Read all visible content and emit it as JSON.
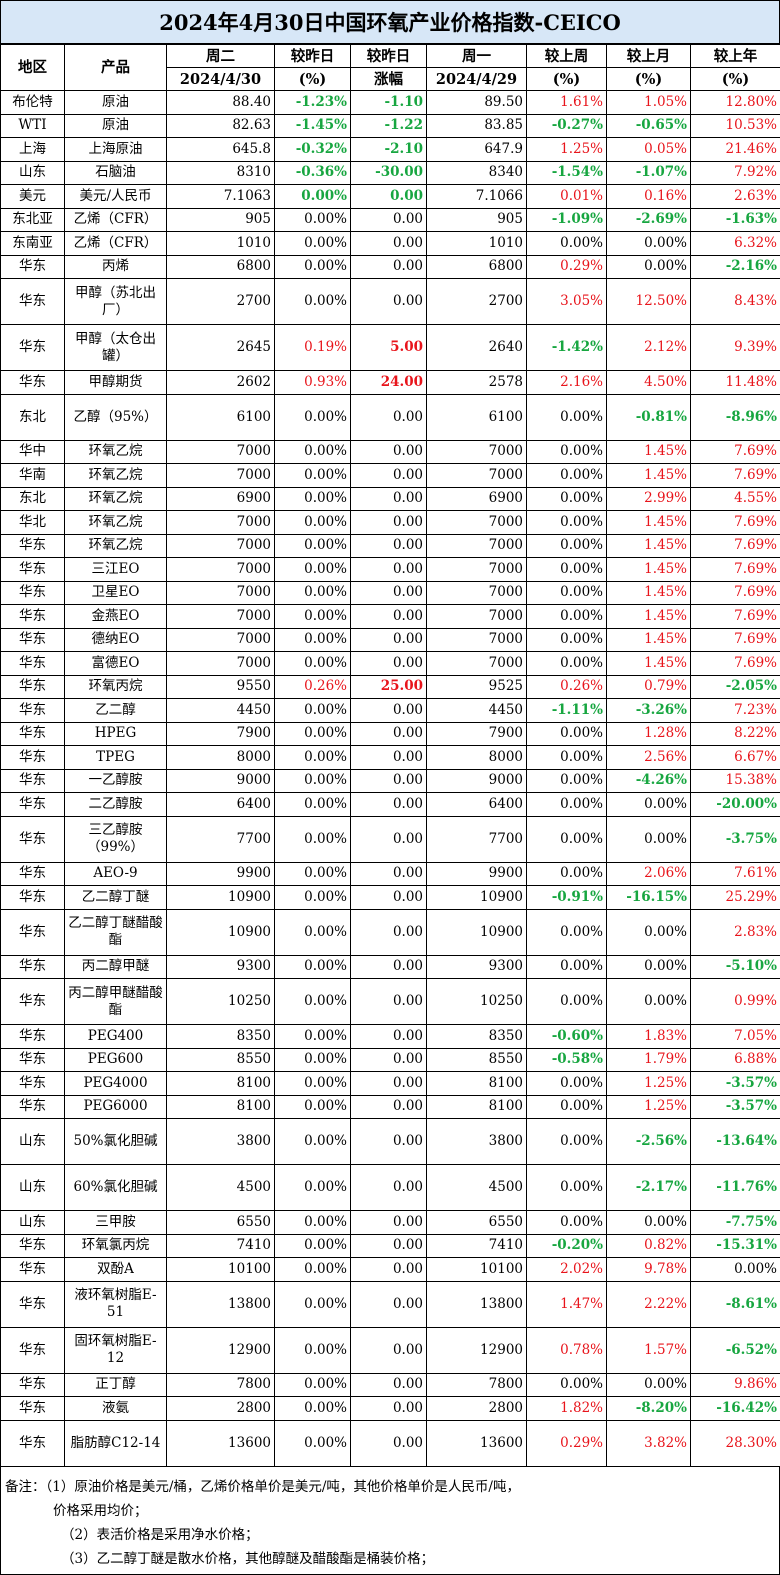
{
  "title": "2024年4月30日中国环氧产业价格指数-CEICO",
  "headers": {
    "region": "地区",
    "product": "产品",
    "today": "周二",
    "today_date": "2024/4/30",
    "vs_yest": "较昨日",
    "vs_yest_unit": "(%)",
    "vs_yest_abs": "较昨日",
    "vs_yest_abs_unit": "涨幅",
    "prev": "周一",
    "prev_date": "2024/4/29",
    "vs_week": "较上周",
    "vs_week_unit": "(%)",
    "vs_month": "较上月",
    "vs_month_unit": "(%)",
    "vs_year": "较上年",
    "vs_year_unit": "(%)"
  },
  "rows": [
    {
      "region": "布伦特",
      "product": "原油",
      "today": "88.40",
      "pct": "-1.23%",
      "abs": "-1.10",
      "prev": "89.50",
      "week": "1.61%",
      "month": "1.05%",
      "year": "12.80%"
    },
    {
      "region": "WTI",
      "product": "原油",
      "today": "82.63",
      "pct": "-1.45%",
      "abs": "-1.22",
      "prev": "83.85",
      "week": "-0.27%",
      "month": "-0.65%",
      "year": "10.53%"
    },
    {
      "region": "上海",
      "product": "上海原油",
      "today": "645.8",
      "pct": "-0.32%",
      "abs": "-2.10",
      "prev": "647.9",
      "week": "1.25%",
      "month": "0.05%",
      "year": "21.46%"
    },
    {
      "region": "山东",
      "product": "石脑油",
      "today": "8310",
      "pct": "-0.36%",
      "abs": "-30.00",
      "prev": "8340",
      "week": "-1.54%",
      "month": "-1.07%",
      "year": "7.92%"
    },
    {
      "region": "美元",
      "product": "美元/人民币",
      "today": "7.1063",
      "pct": "0.00%",
      "abs": "0.00",
      "prev": "7.1066",
      "week": "0.01%",
      "month": "0.16%",
      "year": "2.63%",
      "bold_zero": true
    },
    {
      "region": "东北亚",
      "product": "乙烯（CFR）",
      "today": "905",
      "pct": "0.00%",
      "abs": "0.00",
      "prev": "905",
      "week": "-1.09%",
      "month": "-2.69%",
      "year": "-1.63%"
    },
    {
      "region": "东南亚",
      "product": "乙烯（CFR）",
      "today": "1010",
      "pct": "0.00%",
      "abs": "0.00",
      "prev": "1010",
      "week": "0.00%",
      "month": "0.00%",
      "year": "6.32%"
    },
    {
      "region": "华东",
      "product": "丙烯",
      "today": "6800",
      "pct": "0.00%",
      "abs": "0.00",
      "prev": "6800",
      "week": "0.29%",
      "month": "0.00%",
      "year": "-2.16%"
    },
    {
      "region": "华东",
      "product": "甲醇（苏北出厂）",
      "today": "2700",
      "pct": "0.00%",
      "abs": "0.00",
      "prev": "2700",
      "week": "3.05%",
      "month": "12.50%",
      "year": "8.43%",
      "tall": true
    },
    {
      "region": "华东",
      "product": "甲醇（太仓出罐）",
      "today": "2645",
      "pct": "0.19%",
      "abs": "5.00",
      "prev": "2640",
      "week": "-1.42%",
      "month": "2.12%",
      "year": "9.39%",
      "tall": true
    },
    {
      "region": "华东",
      "product": "甲醇期货",
      "today": "2602",
      "pct": "0.93%",
      "abs": "24.00",
      "prev": "2578",
      "week": "2.16%",
      "month": "4.50%",
      "year": "11.48%"
    },
    {
      "region": "东北",
      "product": "乙醇（95%）",
      "today": "6100",
      "pct": "0.00%",
      "abs": "0.00",
      "prev": "6100",
      "week": "0.00%",
      "month": "-0.81%",
      "year": "-8.96%",
      "tall": true
    },
    {
      "region": "华中",
      "product": "环氧乙烷",
      "today": "7000",
      "pct": "0.00%",
      "abs": "0.00",
      "prev": "7000",
      "week": "0.00%",
      "month": "1.45%",
      "year": "7.69%"
    },
    {
      "region": "华南",
      "product": "环氧乙烷",
      "today": "7000",
      "pct": "0.00%",
      "abs": "0.00",
      "prev": "7000",
      "week": "0.00%",
      "month": "1.45%",
      "year": "7.69%"
    },
    {
      "region": "东北",
      "product": "环氧乙烷",
      "today": "6900",
      "pct": "0.00%",
      "abs": "0.00",
      "prev": "6900",
      "week": "0.00%",
      "month": "2.99%",
      "year": "4.55%"
    },
    {
      "region": "华北",
      "product": "环氧乙烷",
      "today": "7000",
      "pct": "0.00%",
      "abs": "0.00",
      "prev": "7000",
      "week": "0.00%",
      "month": "1.45%",
      "year": "7.69%"
    },
    {
      "region": "华东",
      "product": "环氧乙烷",
      "today": "7000",
      "pct": "0.00%",
      "abs": "0.00",
      "prev": "7000",
      "week": "0.00%",
      "month": "1.45%",
      "year": "7.69%"
    },
    {
      "region": "华东",
      "product": "三江EO",
      "today": "7000",
      "pct": "0.00%",
      "abs": "0.00",
      "prev": "7000",
      "week": "0.00%",
      "month": "1.45%",
      "year": "7.69%"
    },
    {
      "region": "华东",
      "product": "卫星EO",
      "today": "7000",
      "pct": "0.00%",
      "abs": "0.00",
      "prev": "7000",
      "week": "0.00%",
      "month": "1.45%",
      "year": "7.69%"
    },
    {
      "region": "华东",
      "product": "金燕EO",
      "today": "7000",
      "pct": "0.00%",
      "abs": "0.00",
      "prev": "7000",
      "week": "0.00%",
      "month": "1.45%",
      "year": "7.69%"
    },
    {
      "region": "华东",
      "product": "德纳EO",
      "today": "7000",
      "pct": "0.00%",
      "abs": "0.00",
      "prev": "7000",
      "week": "0.00%",
      "month": "1.45%",
      "year": "7.69%"
    },
    {
      "region": "华东",
      "product": "富德EO",
      "today": "7000",
      "pct": "0.00%",
      "abs": "0.00",
      "prev": "7000",
      "week": "0.00%",
      "month": "1.45%",
      "year": "7.69%"
    },
    {
      "region": "华东",
      "product": "环氧丙烷",
      "today": "9550",
      "pct": "0.26%",
      "abs": "25.00",
      "prev": "9525",
      "week": "0.26%",
      "month": "0.79%",
      "year": "-2.05%"
    },
    {
      "region": "华东",
      "product": "乙二醇",
      "today": "4450",
      "pct": "0.00%",
      "abs": "0.00",
      "prev": "4450",
      "week": "-1.11%",
      "month": "-3.26%",
      "year": "7.23%"
    },
    {
      "region": "华东",
      "product": "HPEG",
      "today": "7900",
      "pct": "0.00%",
      "abs": "0.00",
      "prev": "7900",
      "week": "0.00%",
      "month": "1.28%",
      "year": "8.22%"
    },
    {
      "region": "华东",
      "product": "TPEG",
      "today": "8000",
      "pct": "0.00%",
      "abs": "0.00",
      "prev": "8000",
      "week": "0.00%",
      "month": "2.56%",
      "year": "6.67%"
    },
    {
      "region": "华东",
      "product": "一乙醇胺",
      "today": "9000",
      "pct": "0.00%",
      "abs": "0.00",
      "prev": "9000",
      "week": "0.00%",
      "month": "-4.26%",
      "year": "15.38%"
    },
    {
      "region": "华东",
      "product": "二乙醇胺",
      "today": "6400",
      "pct": "0.00%",
      "abs": "0.00",
      "prev": "6400",
      "week": "0.00%",
      "month": "0.00%",
      "year": "-20.00%"
    },
    {
      "region": "华东",
      "product": "三乙醇胺（99%）",
      "today": "7700",
      "pct": "0.00%",
      "abs": "0.00",
      "prev": "7700",
      "week": "0.00%",
      "month": "0.00%",
      "year": "-3.75%",
      "tall": true
    },
    {
      "region": "华东",
      "product": "AEO-9",
      "today": "9900",
      "pct": "0.00%",
      "abs": "0.00",
      "prev": "9900",
      "week": "0.00%",
      "month": "2.06%",
      "year": "7.61%"
    },
    {
      "region": "华东",
      "product": "乙二醇丁醚",
      "today": "10900",
      "pct": "0.00%",
      "abs": "0.00",
      "prev": "10900",
      "week": "-0.91%",
      "month": "-16.15%",
      "year": "25.29%"
    },
    {
      "region": "华东",
      "product": "乙二醇丁醚醋酸酯",
      "today": "10900",
      "pct": "0.00%",
      "abs": "0.00",
      "prev": "10900",
      "week": "0.00%",
      "month": "0.00%",
      "year": "2.83%",
      "tall": true
    },
    {
      "region": "华东",
      "product": "丙二醇甲醚",
      "today": "9300",
      "pct": "0.00%",
      "abs": "0.00",
      "prev": "9300",
      "week": "0.00%",
      "month": "0.00%",
      "year": "-5.10%"
    },
    {
      "region": "华东",
      "product": "丙二醇甲醚醋酸酯",
      "today": "10250",
      "pct": "0.00%",
      "abs": "0.00",
      "prev": "10250",
      "week": "0.00%",
      "month": "0.00%",
      "year": "0.99%",
      "tall": true
    },
    {
      "region": "华东",
      "product": "PEG400",
      "today": "8350",
      "pct": "0.00%",
      "abs": "0.00",
      "prev": "8350",
      "week": "-0.60%",
      "month": "1.83%",
      "year": "7.05%"
    },
    {
      "region": "华东",
      "product": "PEG600",
      "today": "8550",
      "pct": "0.00%",
      "abs": "0.00",
      "prev": "8550",
      "week": "-0.58%",
      "month": "1.79%",
      "year": "6.88%"
    },
    {
      "region": "华东",
      "product": "PEG4000",
      "today": "8100",
      "pct": "0.00%",
      "abs": "0.00",
      "prev": "8100",
      "week": "0.00%",
      "month": "1.25%",
      "year": "-3.57%"
    },
    {
      "region": "华东",
      "product": "PEG6000",
      "today": "8100",
      "pct": "0.00%",
      "abs": "0.00",
      "prev": "8100",
      "week": "0.00%",
      "month": "1.25%",
      "year": "-3.57%"
    },
    {
      "region": "山东",
      "product": "50%氯化胆碱",
      "today": "3800",
      "pct": "0.00%",
      "abs": "0.00",
      "prev": "3800",
      "week": "0.00%",
      "month": "-2.56%",
      "year": "-13.64%",
      "tall": true
    },
    {
      "region": "山东",
      "product": "60%氯化胆碱",
      "today": "4500",
      "pct": "0.00%",
      "abs": "0.00",
      "prev": "4500",
      "week": "0.00%",
      "month": "-2.17%",
      "year": "-11.76%",
      "tall": true
    },
    {
      "region": "山东",
      "product": "三甲胺",
      "today": "6550",
      "pct": "0.00%",
      "abs": "0.00",
      "prev": "6550",
      "week": "0.00%",
      "month": "0.00%",
      "year": "-7.75%"
    },
    {
      "region": "华东",
      "product": "环氧氯丙烷",
      "today": "7410",
      "pct": "0.00%",
      "abs": "0.00",
      "prev": "7410",
      "week": "-0.20%",
      "month": "0.82%",
      "year": "-15.31%"
    },
    {
      "region": "华东",
      "product": "双酚A",
      "today": "10100",
      "pct": "0.00%",
      "abs": "0.00",
      "prev": "10100",
      "week": "2.02%",
      "month": "9.78%",
      "year": "0.00%"
    },
    {
      "region": "华东",
      "product": "液环氧树脂E-51",
      "today": "13800",
      "pct": "0.00%",
      "abs": "0.00",
      "prev": "13800",
      "week": "1.47%",
      "month": "2.22%",
      "year": "-8.61%",
      "tall": true
    },
    {
      "region": "华东",
      "product": "固环氧树脂E-12",
      "today": "12900",
      "pct": "0.00%",
      "abs": "0.00",
      "prev": "12900",
      "week": "0.78%",
      "month": "1.57%",
      "year": "-6.52%",
      "tall": true
    },
    {
      "region": "华东",
      "product": "正丁醇",
      "today": "7800",
      "pct": "0.00%",
      "abs": "0.00",
      "prev": "7800",
      "week": "0.00%",
      "month": "0.00%",
      "year": "9.86%"
    },
    {
      "region": "华东",
      "product": "液氨",
      "today": "2800",
      "pct": "0.00%",
      "abs": "0.00",
      "prev": "2800",
      "week": "1.82%",
      "month": "-8.20%",
      "year": "-16.42%"
    },
    {
      "region": "华东",
      "product": "脂肪醇C12-14",
      "today": "13600",
      "pct": "0.00%",
      "abs": "0.00",
      "prev": "13600",
      "week": "0.29%",
      "month": "3.82%",
      "year": "28.30%",
      "tall": true
    }
  ],
  "notes": {
    "n1": "备注：（1）原油价格是美元/桶，乙烯价格单价是美元/吨，其他价格单价是人民币/吨，",
    "n1b": "价格采用均价；",
    "n2": "（2）表活价格是采用净水价格；",
    "n3": "（3）乙二醇丁醚是散水价格，其他醇醚及醋酸酯是桶装价格；"
  },
  "colors": {
    "header_bg": "#d7e7f7",
    "up": "#e8141b",
    "down": "#17a640"
  }
}
